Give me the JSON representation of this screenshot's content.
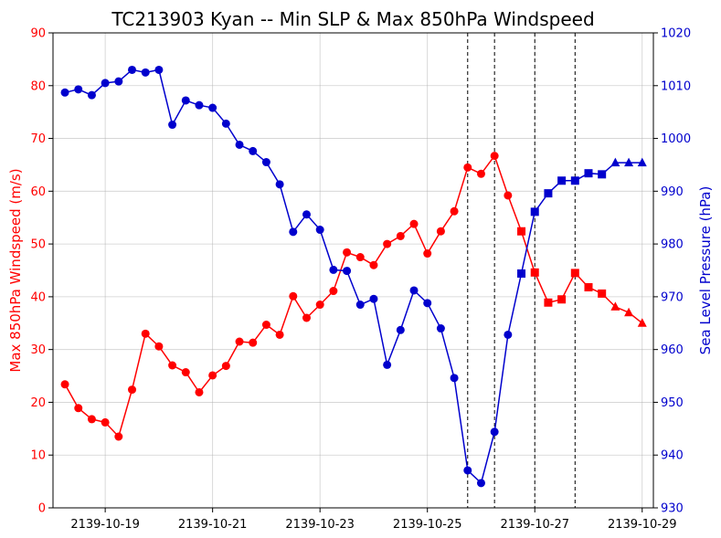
{
  "chart_data": {
    "type": "line",
    "title": "TC213903 Kyan -- Min SLP & Max 850hPa Windspeed",
    "xlabel": "",
    "y_left_label": "Max 850hPa Windspeed (m/s)",
    "y_right_label": "Sea Level Pressure (hPa)",
    "x_tick_labels": [
      "2139-10-19",
      "2139-10-21",
      "2139-10-23",
      "2139-10-25",
      "2139-10-27",
      "2139-10-29"
    ],
    "x_tick_values": [
      "2139-10-19",
      "2139-10-21",
      "2139-10-23",
      "2139-10-25",
      "2139-10-27",
      "2139-10-29"
    ],
    "xlim": [
      "2139-10-18T00:40",
      "2139-10-29T05:00"
    ],
    "ylim_left": [
      0,
      90
    ],
    "ylim_right": [
      930,
      1020
    ],
    "yticks_left": [
      0,
      10,
      20,
      30,
      40,
      50,
      60,
      70,
      80,
      90
    ],
    "yticks_right": [
      930,
      940,
      950,
      960,
      970,
      980,
      990,
      1000,
      1010,
      1020
    ],
    "grid": true,
    "left_axis_color": "#ff0000",
    "right_axis_color": "#0000cd",
    "stage_lines": [
      "2139-10-25T18:00",
      "2139-10-26T06:00",
      "2139-10-27T00:00",
      "2139-10-27T18:00"
    ],
    "marker_segments": [
      {
        "marker": "circle",
        "from": 0,
        "to": 34
      },
      {
        "marker": "square",
        "from": 34,
        "to": 41
      },
      {
        "marker": "triangle",
        "from": 41,
        "to": 45
      }
    ],
    "x": [
      "2139-10-18T06:00",
      "2139-10-18T12:00",
      "2139-10-18T18:00",
      "2139-10-19T00:00",
      "2139-10-19T06:00",
      "2139-10-19T12:00",
      "2139-10-19T18:00",
      "2139-10-20T00:00",
      "2139-10-20T06:00",
      "2139-10-20T12:00",
      "2139-10-20T18:00",
      "2139-10-21T00:00",
      "2139-10-21T06:00",
      "2139-10-21T12:00",
      "2139-10-21T18:00",
      "2139-10-22T00:00",
      "2139-10-22T06:00",
      "2139-10-22T12:00",
      "2139-10-22T18:00",
      "2139-10-23T00:00",
      "2139-10-23T06:00",
      "2139-10-23T12:00",
      "2139-10-23T18:00",
      "2139-10-24T00:00",
      "2139-10-24T06:00",
      "2139-10-24T12:00",
      "2139-10-24T18:00",
      "2139-10-25T00:00",
      "2139-10-25T06:00",
      "2139-10-25T12:00",
      "2139-10-25T18:00",
      "2139-10-26T00:00",
      "2139-10-26T06:00",
      "2139-10-26T12:00",
      "2139-10-26T18:00",
      "2139-10-27T00:00",
      "2139-10-27T06:00",
      "2139-10-27T12:00",
      "2139-10-27T18:00",
      "2139-10-28T00:00",
      "2139-10-28T06:00",
      "2139-10-28T12:00",
      "2139-10-28T18:00",
      "2139-10-29T00:00"
    ],
    "series": [
      {
        "name": "",
        "axis": "left",
        "color": "#ff0000",
        "values": [
          23.4,
          18.9,
          16.8,
          16.2,
          13.5,
          22.4,
          33.0,
          30.6,
          27.0,
          25.7,
          21.9,
          25.1,
          26.9,
          31.5,
          31.3,
          34.7,
          32.8,
          40.1,
          36.0,
          38.5,
          41.1,
          48.4,
          47.5,
          46.0,
          50.0,
          51.5,
          53.8,
          48.2,
          52.4,
          56.2,
          64.5,
          63.3,
          66.7,
          59.2,
          52.4,
          44.6,
          38.9,
          39.5,
          44.5,
          41.8,
          40.6,
          38.1,
          37.0,
          35.0
        ]
      },
      {
        "name": "",
        "axis": "right",
        "color": "#0000cd",
        "values": [
          1008.7,
          1009.3,
          1008.2,
          1010.5,
          1010.8,
          1013.0,
          1012.5,
          1013.0,
          1002.6,
          1007.2,
          1006.3,
          1005.8,
          1002.8,
          998.8,
          997.6,
          995.5,
          991.3,
          982.3,
          985.6,
          982.7,
          975.1,
          974.9,
          968.5,
          969.6,
          957.1,
          963.7,
          971.2,
          968.8,
          964.0,
          954.6,
          937.1,
          934.7,
          944.4,
          962.8,
          974.4,
          986.1,
          989.6,
          992.0,
          992.0,
          993.4,
          993.2,
          995.4,
          995.4,
          995.4
        ]
      }
    ]
  }
}
